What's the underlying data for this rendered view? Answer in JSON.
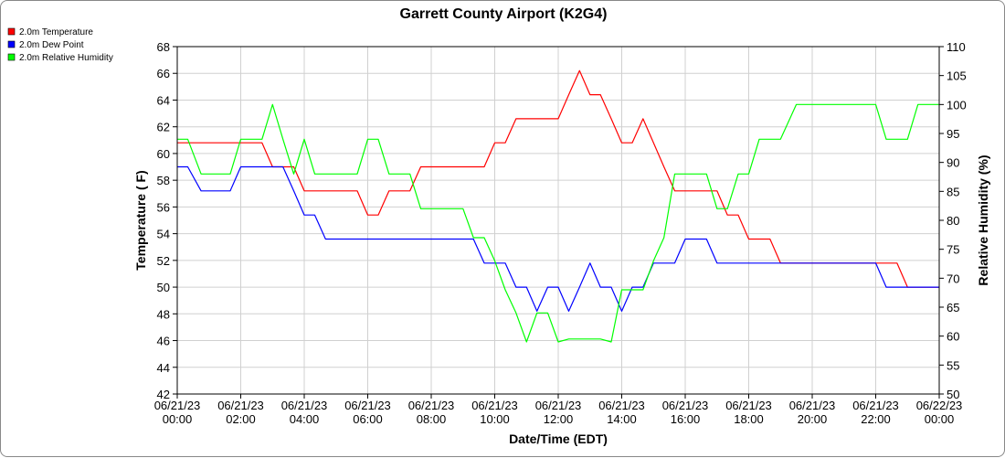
{
  "chart_data": {
    "type": "line",
    "title": "Garrett County Airport (K2G4)",
    "xlabel": "Date/Time (EDT)",
    "ylabel": "Temperature ( F)",
    "y2label": "Relative Humidity (%)",
    "ylim": [
      42,
      68
    ],
    "y2lim": [
      50,
      110
    ],
    "xlim_hours": [
      0,
      24
    ],
    "x_tick_labels": [
      [
        "06/21/23",
        "00:00"
      ],
      [
        "06/21/23",
        "02:00"
      ],
      [
        "06/21/23",
        "04:00"
      ],
      [
        "06/21/23",
        "06:00"
      ],
      [
        "06/21/23",
        "08:00"
      ],
      [
        "06/21/23",
        "10:00"
      ],
      [
        "06/21/23",
        "12:00"
      ],
      [
        "06/21/23",
        "14:00"
      ],
      [
        "06/21/23",
        "16:00"
      ],
      [
        "06/21/23",
        "18:00"
      ],
      [
        "06/21/23",
        "20:00"
      ],
      [
        "06/21/23",
        "22:00"
      ],
      [
        "06/22/23",
        "00:00"
      ]
    ],
    "y_ticks": [
      42,
      44,
      46,
      48,
      50,
      52,
      54,
      56,
      58,
      60,
      62,
      64,
      66,
      68
    ],
    "y2_ticks": [
      50,
      55,
      60,
      65,
      70,
      75,
      80,
      85,
      90,
      95,
      100,
      105,
      110
    ],
    "grid": true,
    "legend_position": "top-left",
    "series": [
      {
        "name": "2.0m Temperature",
        "color": "#ff0000",
        "axis": "left",
        "x": [
          0,
          0.33,
          0.75,
          1.0,
          1.33,
          1.67,
          2.0,
          2.33,
          2.67,
          3.0,
          3.33,
          3.67,
          4.0,
          4.33,
          4.67,
          5.0,
          5.33,
          5.67,
          6.0,
          6.33,
          6.67,
          7.0,
          7.33,
          7.67,
          8.0,
          8.33,
          8.67,
          9.0,
          9.33,
          9.67,
          10.0,
          10.33,
          10.67,
          11.0,
          11.33,
          11.67,
          12.0,
          12.33,
          12.67,
          13.0,
          13.33,
          13.67,
          14.0,
          14.33,
          14.67,
          15.0,
          15.33,
          15.67,
          16.0,
          16.33,
          16.67,
          17.0,
          17.33,
          17.67,
          18.0,
          18.33,
          18.67,
          19.0,
          19.5,
          20.0,
          20.5,
          21.0,
          21.33,
          21.67,
          22.0,
          22.33,
          22.67,
          23.0,
          23.33,
          23.67,
          24.0
        ],
        "values": [
          60.8,
          60.8,
          60.8,
          60.8,
          60.8,
          60.8,
          60.8,
          60.8,
          60.8,
          59.0,
          59.0,
          59.0,
          57.2,
          57.2,
          57.2,
          57.2,
          57.2,
          57.2,
          55.4,
          55.4,
          57.2,
          57.2,
          57.2,
          59.0,
          59.0,
          59.0,
          59.0,
          59.0,
          59.0,
          59.0,
          60.8,
          60.8,
          62.6,
          62.6,
          62.6,
          62.6,
          62.6,
          64.4,
          66.2,
          64.4,
          64.4,
          62.6,
          60.8,
          60.8,
          62.6,
          60.8,
          59.0,
          57.2,
          57.2,
          57.2,
          57.2,
          57.2,
          55.4,
          55.4,
          53.6,
          53.6,
          53.6,
          51.8,
          51.8,
          51.8,
          51.8,
          51.8,
          51.8,
          51.8,
          51.8,
          51.8,
          51.8,
          50.0,
          50.0,
          50.0,
          50.0
        ]
      },
      {
        "name": "2.0m Dew Point",
        "color": "#0000ff",
        "axis": "left",
        "x": [
          0,
          0.33,
          0.75,
          1.0,
          1.33,
          1.67,
          2.0,
          2.33,
          2.67,
          3.0,
          3.33,
          3.67,
          4.0,
          4.33,
          4.67,
          5.0,
          5.33,
          5.67,
          6.0,
          6.33,
          6.67,
          7.0,
          7.33,
          7.67,
          8.0,
          8.33,
          8.67,
          9.0,
          9.33,
          9.67,
          10.0,
          10.33,
          10.67,
          11.0,
          11.33,
          11.67,
          12.0,
          12.33,
          12.67,
          13.0,
          13.33,
          13.67,
          14.0,
          14.33,
          14.67,
          15.0,
          15.33,
          15.67,
          16.0,
          16.33,
          16.67,
          17.0,
          17.33,
          17.67,
          18.0,
          18.33,
          18.67,
          19.0,
          19.5,
          20.0,
          20.5,
          21.0,
          21.33,
          21.67,
          22.0,
          22.33,
          22.67,
          23.0,
          23.33,
          23.67,
          24.0
        ],
        "values": [
          59.0,
          59.0,
          57.2,
          57.2,
          57.2,
          57.2,
          59.0,
          59.0,
          59.0,
          59.0,
          59.0,
          57.2,
          55.4,
          55.4,
          53.6,
          53.6,
          53.6,
          53.6,
          53.6,
          53.6,
          53.6,
          53.6,
          53.6,
          53.6,
          53.6,
          53.6,
          53.6,
          53.6,
          53.6,
          51.8,
          51.8,
          51.8,
          50.0,
          50.0,
          48.2,
          50.0,
          50.0,
          48.2,
          50.0,
          51.8,
          50.0,
          50.0,
          48.2,
          50.0,
          50.0,
          51.8,
          51.8,
          51.8,
          53.6,
          53.6,
          53.6,
          51.8,
          51.8,
          51.8,
          51.8,
          51.8,
          51.8,
          51.8,
          51.8,
          51.8,
          51.8,
          51.8,
          51.8,
          51.8,
          51.8,
          50.0,
          50.0,
          50.0,
          50.0,
          50.0,
          50.0
        ]
      },
      {
        "name": "2.0m Relative Humidity",
        "color": "#00ff00",
        "axis": "right",
        "x": [
          0,
          0.33,
          0.75,
          1.0,
          1.33,
          1.67,
          2.0,
          2.33,
          2.67,
          3.0,
          3.33,
          3.67,
          4.0,
          4.33,
          4.67,
          5.0,
          5.33,
          5.67,
          6.0,
          6.33,
          6.67,
          7.0,
          7.33,
          7.67,
          8.0,
          8.33,
          8.67,
          9.0,
          9.33,
          9.67,
          10.0,
          10.33,
          10.67,
          11.0,
          11.33,
          11.67,
          12.0,
          12.33,
          12.67,
          13.0,
          13.33,
          13.67,
          14.0,
          14.33,
          14.67,
          15.0,
          15.33,
          15.67,
          16.0,
          16.33,
          16.67,
          17.0,
          17.33,
          17.67,
          18.0,
          18.33,
          18.67,
          19.0,
          19.5,
          20.0,
          20.5,
          21.0,
          21.33,
          21.67,
          22.0,
          22.33,
          22.67,
          23.0,
          23.33,
          23.67,
          24.0
        ],
        "values": [
          94,
          94,
          88,
          88,
          88,
          88,
          94,
          94,
          94,
          100,
          94,
          88,
          94,
          88,
          88,
          88,
          88,
          88,
          94,
          94,
          88,
          88,
          88,
          82,
          82,
          82,
          82,
          82,
          77,
          77,
          73,
          68,
          64,
          59,
          64,
          64,
          59,
          59.5,
          59.5,
          59.5,
          59.5,
          59,
          68,
          68,
          68,
          73,
          77,
          88,
          88,
          88,
          88,
          82,
          82,
          88,
          88,
          94,
          94,
          94,
          100,
          100,
          100,
          100,
          100,
          100,
          100,
          94,
          94,
          94,
          100,
          100,
          100
        ]
      }
    ]
  }
}
